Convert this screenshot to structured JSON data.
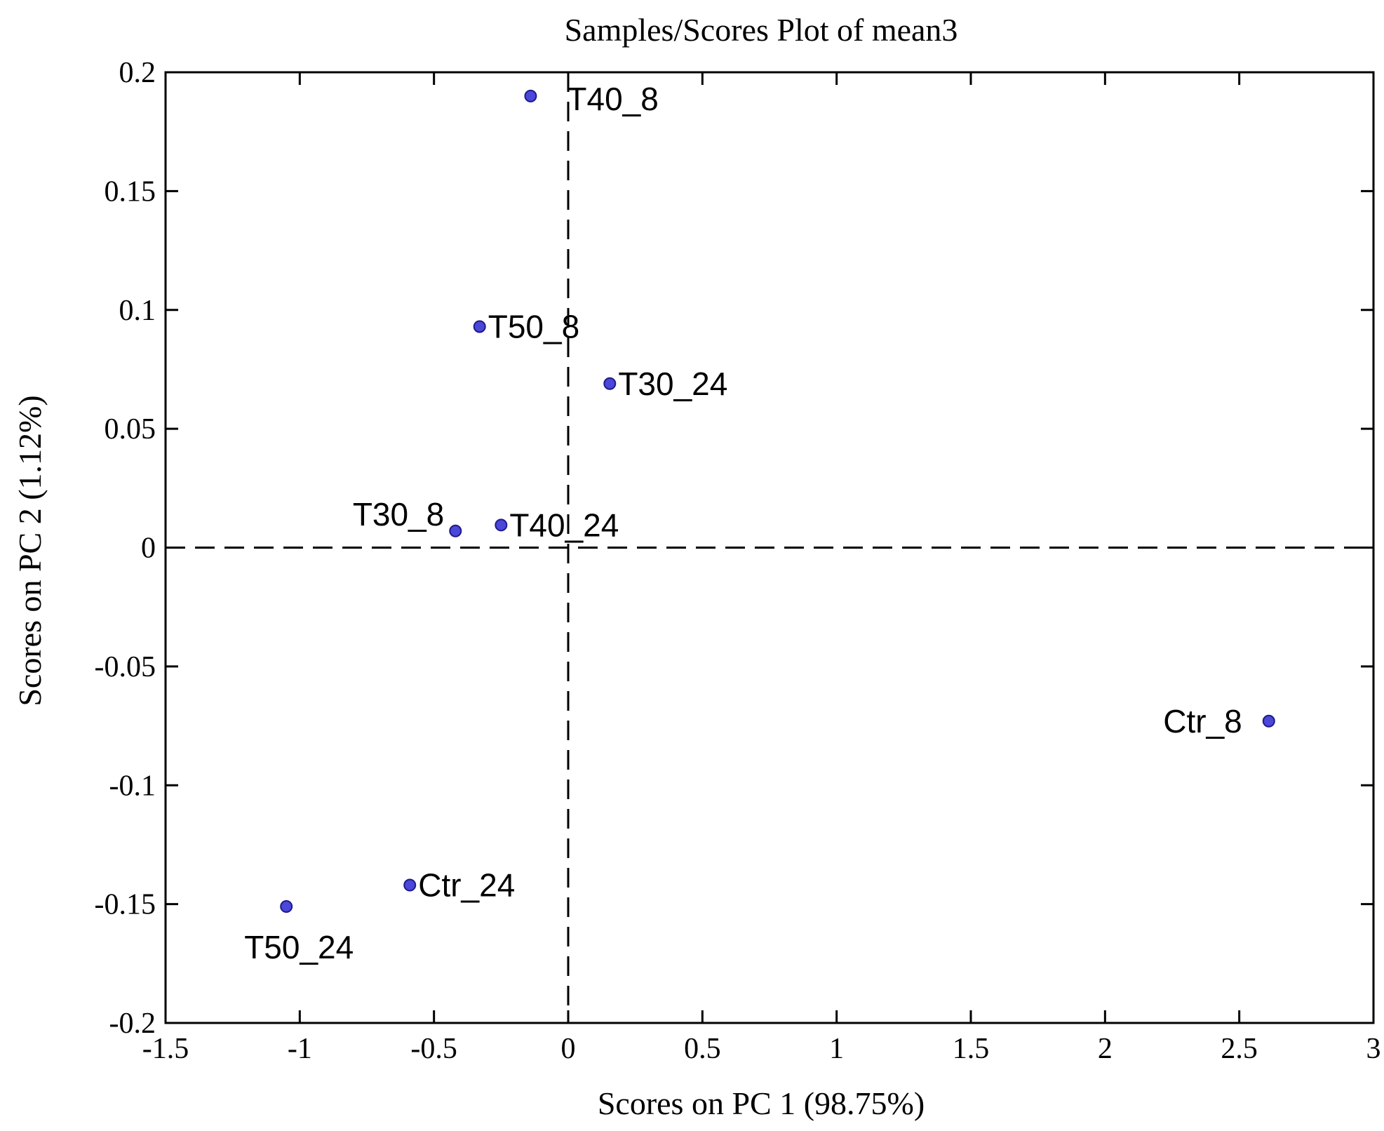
{
  "chart_data": {
    "type": "scatter",
    "title": "Samples/Scores Plot of mean3",
    "xlabel": "Scores on PC 1 (98.75%)",
    "ylabel": "Scores on PC 2 (1.12%)",
    "xlim": [
      -1.5,
      3
    ],
    "ylim": [
      -0.2,
      0.2
    ],
    "xticks": [
      -1.5,
      -1,
      -0.5,
      0,
      0.5,
      1,
      1.5,
      2,
      2.5,
      3
    ],
    "xtick_labels": [
      "-1.5",
      "-1",
      "-0.5",
      "0",
      "0.5",
      "1",
      "1.5",
      "2",
      "2.5",
      "3"
    ],
    "yticks": [
      0.2,
      0.15,
      0.1,
      0.05,
      0,
      -0.05,
      -0.1,
      -0.15,
      -0.2
    ],
    "ytick_labels": [
      "0.2",
      "0.15",
      "0.1",
      "0.05",
      "0",
      "-0.05",
      "-0.1",
      "-0.15",
      "-0.2"
    ],
    "reference_lines": {
      "x": 0,
      "y": 0,
      "style": "dashed"
    },
    "grid": false,
    "marker_color": "#4b47d8",
    "points": [
      {
        "label": "T40_8",
        "x": -0.14,
        "y": 0.19,
        "label_side": "right-below"
      },
      {
        "label": "T50_8",
        "x": -0.33,
        "y": 0.093,
        "label_side": "right"
      },
      {
        "label": "T30_24",
        "x": 0.155,
        "y": 0.069,
        "label_side": "right"
      },
      {
        "label": "T30_8",
        "x": -0.42,
        "y": 0.007,
        "label_side": "left-above"
      },
      {
        "label": "T40_24",
        "x": -0.25,
        "y": 0.0095,
        "label_side": "right"
      },
      {
        "label": "Ctr_8",
        "x": 2.61,
        "y": -0.073,
        "label_side": "left"
      },
      {
        "label": "Ctr_24",
        "x": -0.59,
        "y": -0.142,
        "label_side": "right"
      },
      {
        "label": "T50_24",
        "x": -1.05,
        "y": -0.151,
        "label_side": "below"
      }
    ]
  }
}
